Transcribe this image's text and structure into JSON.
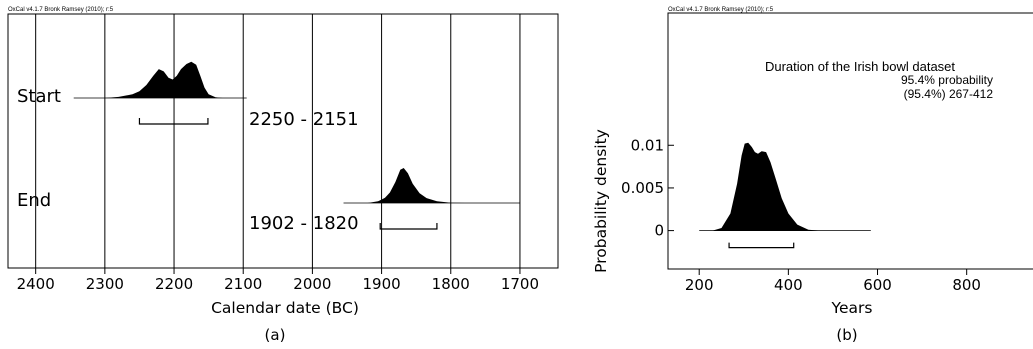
{
  "chart_data": [
    {
      "type": "area",
      "panel": "(a)",
      "credit": "OxCal v4.1.7 Bronk Ramsey (2010); r:5",
      "xlabel": "Calendar date (BC)",
      "x_ticks": [
        2400,
        2300,
        2200,
        2100,
        2000,
        1900,
        1800,
        1700
      ],
      "xlim": [
        2440,
        1645
      ],
      "x_reversed": true,
      "grid": "vertical lines at each tick",
      "series": [
        {
          "name": "Start",
          "range_label": "2250 - 2151",
          "hpd_range": [
            2250,
            2151
          ],
          "line_extent": [
            2345,
            2095
          ],
          "density_x": [
            2300,
            2280,
            2260,
            2250,
            2240,
            2230,
            2222,
            2215,
            2208,
            2202,
            2196,
            2190,
            2182,
            2175,
            2168,
            2162,
            2156,
            2150,
            2140,
            2130
          ],
          "density_y": [
            0.0,
            0.03,
            0.1,
            0.18,
            0.35,
            0.6,
            0.78,
            0.72,
            0.55,
            0.5,
            0.6,
            0.78,
            0.92,
            0.98,
            0.9,
            0.6,
            0.28,
            0.1,
            0.02,
            0.0
          ]
        },
        {
          "name": "End",
          "range_label": "1902 - 1820",
          "hpd_range": [
            1902,
            1820
          ],
          "line_extent": [
            1955,
            1700
          ],
          "density_x": [
            1920,
            1905,
            1895,
            1888,
            1880,
            1873,
            1868,
            1862,
            1855,
            1845,
            1835,
            1820,
            1800,
            1780
          ],
          "density_y": [
            0.0,
            0.05,
            0.15,
            0.3,
            0.6,
            0.95,
            1.0,
            0.85,
            0.55,
            0.28,
            0.14,
            0.05,
            0.01,
            0.0
          ]
        }
      ]
    },
    {
      "type": "area",
      "panel": "(b)",
      "credit": "OxCal v4.1.7 Bronk Ramsey (2010); r:5",
      "title": "Duration of the Irish bowl dataset",
      "subtitle": "95.4% probability",
      "hpd_text": "(95.4%) 267-412",
      "hpd_range": [
        267,
        412
      ],
      "xlabel": "Years",
      "ylabel": "Probability density",
      "x_ticks": [
        200,
        400,
        600,
        800
      ],
      "y_ticks": [
        0,
        0.005,
        0.01
      ],
      "y_tick_labels": [
        "0",
        "0.005",
        "0.01"
      ],
      "xlim": [
        130,
        960
      ],
      "ylim": [
        -0.0045,
        0.0255
      ],
      "line_extent": [
        200,
        585
      ],
      "x": [
        230,
        250,
        270,
        285,
        295,
        302,
        310,
        318,
        325,
        332,
        340,
        350,
        360,
        372,
        385,
        400,
        420,
        445,
        470
      ],
      "y": [
        0.0,
        0.0003,
        0.002,
        0.0055,
        0.0088,
        0.0102,
        0.0103,
        0.0098,
        0.0092,
        0.009,
        0.0093,
        0.0092,
        0.008,
        0.006,
        0.0038,
        0.002,
        0.0007,
        0.0001,
        0.0
      ]
    }
  ]
}
